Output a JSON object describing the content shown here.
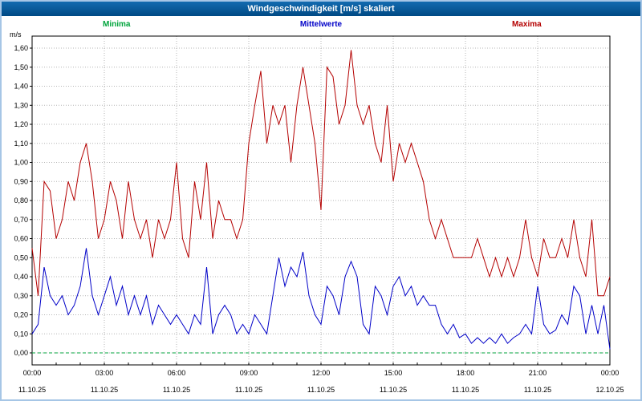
{
  "window_title": "Windgeschwindigkeit [m/s] skaliert",
  "legend": {
    "minima": "Minima",
    "mittelwerte": "Mittelwerte",
    "maxima": "Maxima",
    "minima_color": "#00a43c",
    "mittelwerte_color": "#0000c8",
    "maxima_color": "#b40000"
  },
  "chart_data": {
    "type": "line",
    "title": "Windgeschwindigkeit [m/s] skaliert",
    "ylabel": "m/s",
    "ylim": [
      0,
      1.6
    ],
    "y_tick_labels": [
      "0,00",
      "0,10",
      "0,20",
      "0,30",
      "0,40",
      "0,50",
      "0,60",
      "0,70",
      "0,80",
      "0,90",
      "1,00",
      "1,10",
      "1,20",
      "1,30",
      "1,40",
      "1,50",
      "1,60"
    ],
    "x_tick_labels": [
      "00:00",
      "03:00",
      "06:00",
      "09:00",
      "12:00",
      "15:00",
      "18:00",
      "21:00",
      "00:00"
    ],
    "x_tick_hours": [
      0,
      3,
      6,
      9,
      12,
      15,
      18,
      21,
      24
    ],
    "x_date_labels": [
      "11.10.25",
      "11.10.25",
      "11.10.25",
      "11.10.25",
      "11.10.25",
      "11.10.25",
      "11.10.25",
      "11.10.25",
      "12.10.25"
    ],
    "x_step_hours": 0.25,
    "grid": true,
    "legend_position": "top",
    "series": [
      {
        "name": "Minima",
        "color": "#00a43c",
        "dashed": true,
        "values": [
          0,
          0,
          0,
          0,
          0,
          0,
          0,
          0,
          0,
          0,
          0,
          0,
          0,
          0,
          0,
          0,
          0,
          0,
          0,
          0,
          0,
          0,
          0,
          0,
          0,
          0,
          0,
          0,
          0,
          0,
          0,
          0,
          0,
          0,
          0,
          0,
          0,
          0,
          0,
          0,
          0,
          0,
          0,
          0,
          0,
          0,
          0,
          0,
          0,
          0,
          0,
          0,
          0,
          0,
          0,
          0,
          0,
          0,
          0,
          0,
          0,
          0,
          0,
          0,
          0,
          0,
          0,
          0,
          0,
          0,
          0,
          0,
          0,
          0,
          0,
          0,
          0,
          0,
          0,
          0,
          0,
          0,
          0,
          0,
          0,
          0,
          0,
          0,
          0,
          0,
          0,
          0,
          0,
          0,
          0,
          0,
          0
        ]
      },
      {
        "name": "Mittelwerte",
        "color": "#0000c8",
        "dashed": false,
        "values": [
          0.1,
          0.15,
          0.45,
          0.3,
          0.25,
          0.3,
          0.2,
          0.25,
          0.35,
          0.55,
          0.3,
          0.2,
          0.3,
          0.4,
          0.25,
          0.35,
          0.2,
          0.3,
          0.2,
          0.3,
          0.15,
          0.25,
          0.2,
          0.15,
          0.2,
          0.15,
          0.1,
          0.2,
          0.15,
          0.45,
          0.1,
          0.2,
          0.25,
          0.2,
          0.1,
          0.15,
          0.1,
          0.2,
          0.15,
          0.1,
          0.3,
          0.5,
          0.35,
          0.45,
          0.4,
          0.53,
          0.3,
          0.2,
          0.15,
          0.35,
          0.3,
          0.2,
          0.4,
          0.48,
          0.4,
          0.15,
          0.1,
          0.35,
          0.3,
          0.2,
          0.35,
          0.4,
          0.3,
          0.35,
          0.25,
          0.3,
          0.25,
          0.25,
          0.15,
          0.1,
          0.15,
          0.08,
          0.1,
          0.05,
          0.08,
          0.05,
          0.08,
          0.05,
          0.1,
          0.05,
          0.08,
          0.1,
          0.15,
          0.1,
          0.35,
          0.15,
          0.1,
          0.12,
          0.2,
          0.15,
          0.35,
          0.3,
          0.1,
          0.25,
          0.1,
          0.25,
          0.02
        ]
      },
      {
        "name": "Maxima",
        "color": "#b40000",
        "dashed": false,
        "values": [
          0.55,
          0.3,
          0.9,
          0.85,
          0.6,
          0.7,
          0.9,
          0.8,
          1.0,
          1.1,
          0.9,
          0.6,
          0.7,
          0.9,
          0.8,
          0.6,
          0.9,
          0.7,
          0.6,
          0.7,
          0.5,
          0.7,
          0.6,
          0.7,
          1.0,
          0.6,
          0.5,
          0.9,
          0.7,
          1.0,
          0.6,
          0.8,
          0.7,
          0.7,
          0.6,
          0.7,
          1.1,
          1.3,
          1.48,
          1.1,
          1.3,
          1.2,
          1.3,
          1.0,
          1.3,
          1.5,
          1.3,
          1.1,
          0.75,
          1.5,
          1.45,
          1.2,
          1.3,
          1.59,
          1.3,
          1.2,
          1.3,
          1.1,
          1.0,
          1.3,
          0.9,
          1.1,
          1.0,
          1.1,
          1.0,
          0.9,
          0.7,
          0.6,
          0.7,
          0.6,
          0.5,
          0.5,
          0.5,
          0.5,
          0.6,
          0.5,
          0.4,
          0.5,
          0.4,
          0.5,
          0.4,
          0.5,
          0.7,
          0.5,
          0.4,
          0.6,
          0.5,
          0.5,
          0.6,
          0.5,
          0.7,
          0.5,
          0.4,
          0.7,
          0.3,
          0.3,
          0.4
        ]
      }
    ]
  }
}
